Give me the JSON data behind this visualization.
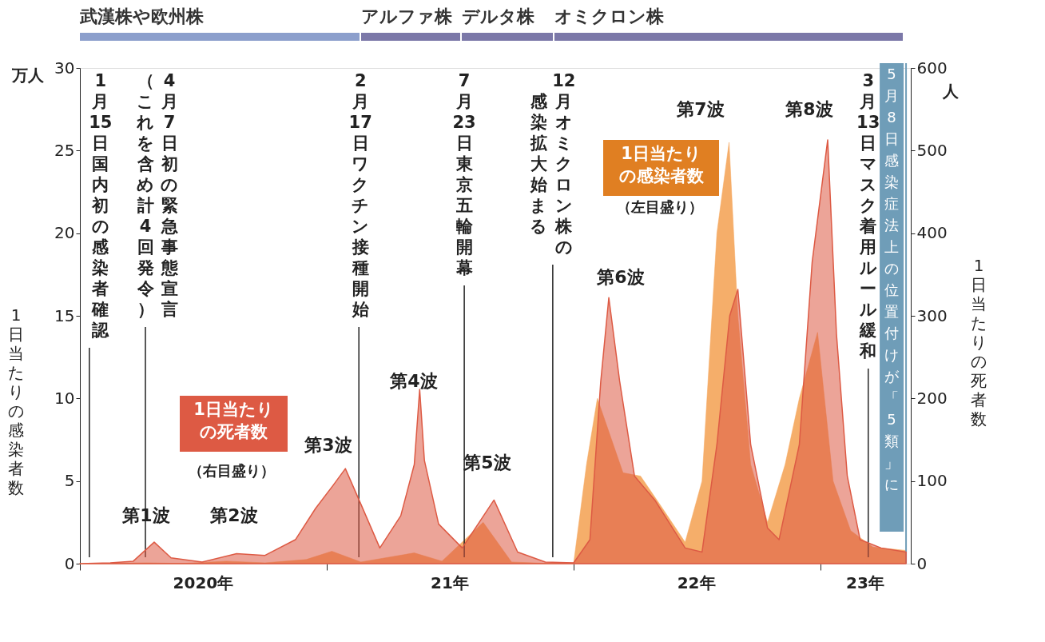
{
  "chart_data": {
    "type": "area",
    "ylabel": "1日当たりの感染者数",
    "y2label": "1日当たりの死者数",
    "xlim": [
      "2020-01-01",
      "2023-05-15"
    ],
    "xticks": [
      {
        "value": "2020-01-01",
        "label": null
      },
      {
        "value": "2020-07-01",
        "label": "2020年"
      },
      {
        "value": "2021-01-01",
        "label": null
      },
      {
        "value": "2021-07-01",
        "label": "21年"
      },
      {
        "value": "2022-01-01",
        "label": null
      },
      {
        "value": "2022-07-01",
        "label": "22年"
      },
      {
        "value": "2023-01-01",
        "label": null
      },
      {
        "value": "2023-03-08",
        "label": "23年"
      }
    ],
    "ylim": [
      0,
      30
    ],
    "yticks": [
      0,
      5,
      10,
      15,
      20,
      25,
      30
    ],
    "y2lim": [
      0,
      600
    ],
    "y2ticks": [
      0,
      100,
      200,
      300,
      400,
      500,
      600
    ],
    "grid": false,
    "series": [
      {
        "name": "1日当たりの感染者数",
        "color": "#f4a55a",
        "x": [
          "2020-01-01",
          "2020-04-10",
          "2020-06-01",
          "2020-08-05",
          "2020-10-01",
          "2020-12-01",
          "2021-01-08",
          "2021-02-20",
          "2021-05-10",
          "2021-06-20",
          "2021-08-20",
          "2021-10-01",
          "2021-11-20",
          "2022-01-01",
          "2022-01-20",
          "2022-02-05",
          "2022-03-15",
          "2022-04-10",
          "2022-05-10",
          "2022-06-15",
          "2022-07-10",
          "2022-08-01",
          "2022-08-19",
          "2022-09-01",
          "2022-09-20",
          "2022-10-15",
          "2022-11-10",
          "2022-12-01",
          "2022-12-28",
          "2023-01-20",
          "2023-02-15",
          "2023-03-20",
          "2023-05-08"
        ],
        "values": [
          0,
          0.05,
          0.01,
          0.15,
          0.05,
          0.25,
          0.75,
          0.1,
          0.65,
          0.15,
          2.5,
          0.1,
          0.02,
          0.05,
          6,
          10,
          5.5,
          5.3,
          3.5,
          1.3,
          5,
          20,
          25.5,
          15,
          6,
          2.5,
          6,
          10,
          14,
          5,
          2,
          1,
          0.8
        ]
      },
      {
        "name": "1日当たりの死者数",
        "axis": "y2",
        "color": "#dd5a44",
        "x": [
          "2020-01-01",
          "2020-02-15",
          "2020-03-20",
          "2020-04-20",
          "2020-05-15",
          "2020-06-30",
          "2020-08-20",
          "2020-10-01",
          "2020-11-15",
          "2020-12-15",
          "2021-01-10",
          "2021-01-28",
          "2021-02-20",
          "2021-03-20",
          "2021-04-20",
          "2021-05-10",
          "2021-05-18",
          "2021-05-25",
          "2021-06-15",
          "2021-07-20",
          "2021-09-05",
          "2021-10-10",
          "2021-11-20",
          "2022-01-01",
          "2022-01-25",
          "2022-02-10",
          "2022-02-22",
          "2022-03-10",
          "2022-04-01",
          "2022-05-01",
          "2022-06-15",
          "2022-07-10",
          "2022-08-01",
          "2022-08-20",
          "2022-09-01",
          "2022-09-20",
          "2022-10-15",
          "2022-11-01",
          "2022-12-01",
          "2022-12-20",
          "2023-01-12",
          "2023-01-25",
          "2023-02-10",
          "2023-03-01",
          "2023-04-01",
          "2023-05-08"
        ],
        "values": [
          0,
          1,
          3,
          26,
          7,
          2,
          12,
          10,
          29,
          67,
          95,
          115,
          72,
          19,
          58,
          120,
          211,
          125,
          48,
          19,
          77,
          14,
          2,
          1,
          29,
          220,
          322,
          221,
          106,
          77,
          19,
          14,
          144,
          300,
          332,
          144,
          43,
          29,
          144,
          365,
          513,
          278,
          106,
          29,
          19,
          14
        ]
      }
    ],
    "ref_lines": [
      {
        "axis": "x",
        "value": "2020-01-15",
        "label": "1月15日国内初の感染者確認"
      },
      {
        "axis": "x",
        "value": "2020-04-07",
        "label": "4月7日初の緊急事態宣言"
      },
      {
        "axis": "x",
        "value": "2021-02-17",
        "label": "2月17日ワクチン接種開始"
      },
      {
        "axis": "x",
        "value": "2021-07-23",
        "label": "7月23日東京五輪開幕"
      },
      {
        "axis": "x",
        "value": "2021-12-01",
        "label": "12月オミクロン株の"
      },
      {
        "axis": "x",
        "value": "2023-03-13",
        "label": "3月13日マスク着用ルール緩和"
      },
      {
        "axis": "x",
        "value": "2023-05-08",
        "label": "5月8日感染症法上の位置付けが「5類」に",
        "color": "#6f9db8"
      }
    ],
    "annotations": [
      "万人",
      "人",
      "（右目盛り）",
      "（左目盛り）",
      "（これを含め計4回発令）",
      "感染拡大始まる",
      "第1波",
      "第2波",
      "第3波",
      "第4波",
      "第5波",
      "第6波",
      "第7波",
      "第8波",
      "武漢株や欧州株",
      "アルファ株",
      "デルタ株",
      "オミクロン株"
    ]
  }
}
